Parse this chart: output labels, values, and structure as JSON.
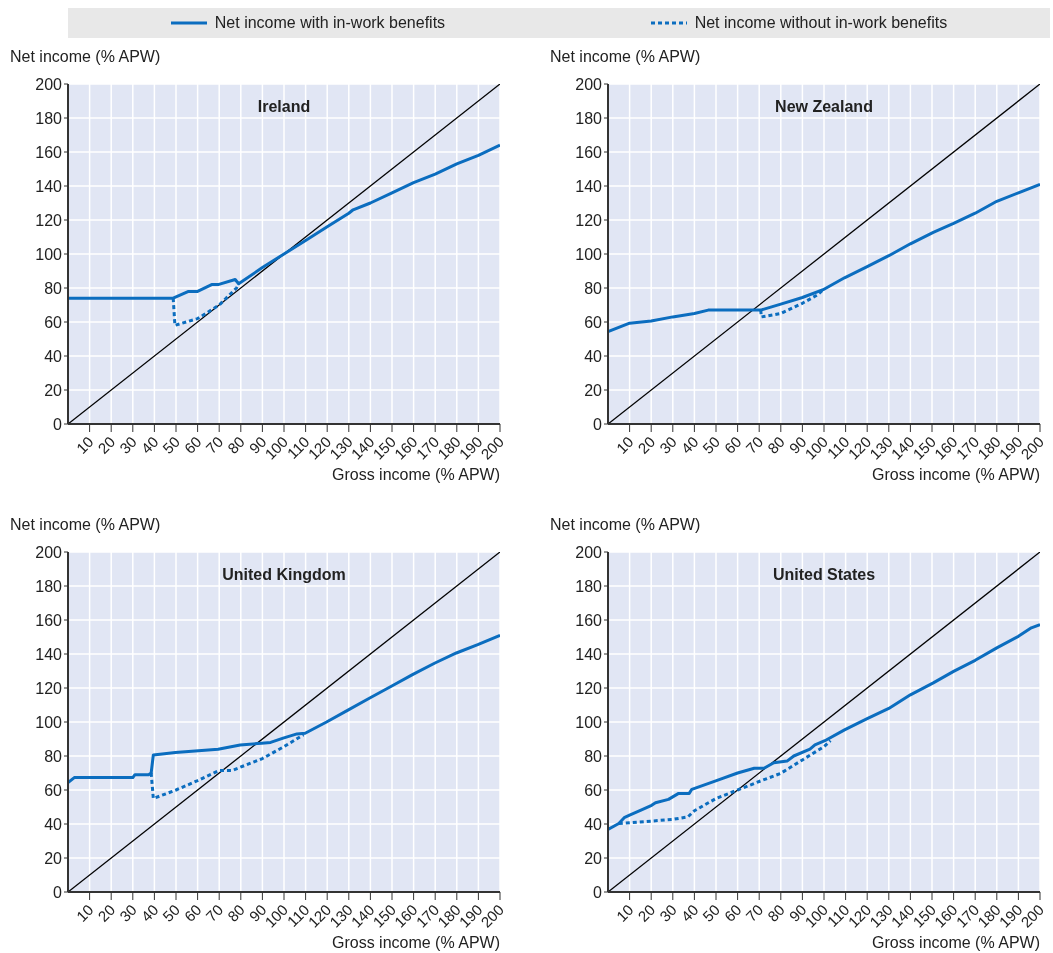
{
  "chart_data": [
    {
      "type": "line",
      "title": "Ireland",
      "xlabel": "Gross income (% APW)",
      "ylabel": "Net income (% APW)",
      "legend": "top",
      "grid": true,
      "xlim": [
        0,
        200
      ],
      "ylim": [
        0,
        200
      ],
      "yticks": [
        0,
        20,
        40,
        60,
        80,
        100,
        120,
        140,
        160,
        180,
        200
      ],
      "xticks": [
        10,
        20,
        30,
        40,
        50,
        60,
        70,
        80,
        90,
        100,
        110,
        120,
        130,
        140,
        150,
        160,
        170,
        180,
        190,
        200
      ],
      "series": [
        {
          "type": "line",
          "color": "#000000",
          "line_style": "solid",
          "x": [
            0,
            200
          ],
          "values": [
            0,
            200
          ]
        },
        {
          "type": "line",
          "name": "Net income with in-work benefits",
          "color": "#0b6dbf",
          "line_style": "solid",
          "x": [
            0,
            48.7,
            55.8,
            60,
            66.5,
            69.5,
            77.4,
            79,
            90,
            100,
            110,
            120,
            130,
            132,
            140,
            150,
            160,
            170,
            180,
            190,
            200
          ],
          "values": [
            74,
            74,
            78,
            78,
            82,
            82,
            85,
            82.5,
            92,
            100,
            108,
            116,
            124,
            126,
            130,
            136,
            142,
            147,
            153,
            158,
            164
          ]
        },
        {
          "type": "line",
          "name": "Net income without in-work benefits",
          "color": "#0b6dbf",
          "line_style": "dashed",
          "x": [
            48.7,
            49.5,
            60,
            70,
            78,
            79
          ],
          "values": [
            74,
            58,
            62,
            70,
            80,
            82.5
          ]
        }
      ]
    },
    {
      "type": "line",
      "title": "New Zealand",
      "xlabel": "Gross income (% APW)",
      "ylabel": "Net income (% APW)",
      "grid": true,
      "xlim": [
        0,
        200
      ],
      "ylim": [
        0,
        200
      ],
      "yticks": [
        0,
        20,
        40,
        60,
        80,
        100,
        120,
        140,
        160,
        180,
        200
      ],
      "xticks": [
        10,
        20,
        30,
        40,
        50,
        60,
        70,
        80,
        90,
        100,
        110,
        120,
        130,
        140,
        150,
        160,
        170,
        180,
        190,
        200
      ],
      "series": [
        {
          "type": "line",
          "color": "#000000",
          "line_style": "solid",
          "x": [
            0,
            200
          ],
          "values": [
            0,
            200
          ]
        },
        {
          "type": "line",
          "color": "#0b6dbf",
          "line_style": "solid",
          "x": [
            0,
            10,
            20,
            30,
            40,
            46.4,
            60,
            70.7,
            80,
            90,
            99.6,
            109.5,
            120,
            130,
            140,
            150.6,
            160,
            170,
            180,
            190,
            200
          ],
          "values": [
            54.4,
            59.3,
            60.6,
            63,
            65,
            67,
            67,
            67,
            70.5,
            74.4,
            79,
            86,
            92.6,
            99,
            106,
            112.7,
            118,
            124,
            131,
            136,
            141
          ]
        },
        {
          "type": "line",
          "color": "#0b6dbf",
          "line_style": "dashed",
          "x": [
            70.7,
            71,
            80,
            90,
            97,
            99.6
          ],
          "values": [
            67,
            63,
            65,
            71,
            76,
            79
          ]
        }
      ]
    },
    {
      "type": "line",
      "title": "United Kingdom",
      "xlabel": "Gross income (% APW)",
      "ylabel": "Net income (% APW)",
      "grid": true,
      "xlim": [
        0,
        200
      ],
      "ylim": [
        0,
        200
      ],
      "yticks": [
        0,
        20,
        40,
        60,
        80,
        100,
        120,
        140,
        160,
        180,
        200
      ],
      "xticks": [
        10,
        20,
        30,
        40,
        50,
        60,
        70,
        80,
        90,
        100,
        110,
        120,
        130,
        140,
        150,
        160,
        170,
        180,
        190,
        200
      ],
      "series": [
        {
          "type": "line",
          "color": "#000000",
          "line_style": "solid",
          "x": [
            0,
            200
          ],
          "values": [
            0,
            200
          ]
        },
        {
          "type": "line",
          "color": "#0b6dbf",
          "line_style": "solid",
          "x": [
            0,
            2.9,
            30,
            31,
            37.3,
            38.5,
            39.5,
            49.7,
            69.5,
            79.7,
            89.6,
            93.8,
            99.6,
            106,
            109.8,
            119.7,
            129.6,
            139.5,
            149.7,
            159.7,
            169.9,
            179.8,
            189.7,
            200
          ],
          "values": [
            64.3,
            67.3,
            67.3,
            69,
            69,
            70,
            80.6,
            82,
            84,
            86.5,
            87.5,
            88,
            90.5,
            93,
            93.4,
            100,
            107,
            114,
            121,
            128,
            134.7,
            140.6,
            145.5,
            151
          ]
        },
        {
          "type": "line",
          "color": "#0b6dbf",
          "line_style": "dashed",
          "x": [
            38.5,
            39.5,
            50,
            60,
            70,
            76,
            90,
            100,
            109
          ],
          "values": [
            70,
            55,
            60,
            65.5,
            71.5,
            71.5,
            78.5,
            85.5,
            92.5
          ]
        }
      ]
    },
    {
      "type": "line",
      "title": "United States",
      "xlabel": "Gross income (% APW)",
      "ylabel": "Net income (% APW)",
      "grid": true,
      "xlim": [
        0,
        200
      ],
      "ylim": [
        0,
        200
      ],
      "yticks": [
        0,
        20,
        40,
        60,
        80,
        100,
        120,
        140,
        160,
        180,
        200
      ],
      "xticks": [
        10,
        20,
        30,
        40,
        50,
        60,
        70,
        80,
        90,
        100,
        110,
        120,
        130,
        140,
        150,
        160,
        170,
        180,
        190,
        200
      ],
      "series": [
        {
          "type": "line",
          "color": "#000000",
          "line_style": "solid",
          "x": [
            0,
            200
          ],
          "values": [
            0,
            200
          ]
        },
        {
          "type": "line",
          "color": "#0b6dbf",
          "line_style": "solid",
          "x": [
            0,
            5,
            7.5,
            10,
            15,
            20.2,
            22,
            28,
            32.7,
            37.6,
            38.8,
            50.2,
            60,
            67.7,
            72.2,
            76.8,
            82.9,
            86,
            93.5,
            95.8,
            100.4,
            109.5,
            120,
            130,
            140,
            150.6,
            160,
            170,
            180,
            190,
            196,
            200
          ],
          "values": [
            36.8,
            40.3,
            43.7,
            45.2,
            48,
            51,
            52.5,
            54.5,
            58,
            58,
            60.4,
            65.5,
            70,
            72.8,
            72.8,
            76,
            77,
            80,
            84,
            86.5,
            89,
            95.4,
            102,
            108,
            116,
            123,
            129.8,
            136.3,
            143.6,
            150.4,
            155.4,
            157.3
          ]
        },
        {
          "type": "line",
          "color": "#0b6dbf",
          "line_style": "dashed",
          "x": [
            5,
            10,
            20,
            30,
            37,
            40,
            50,
            60,
            70,
            80,
            90,
            100,
            103
          ],
          "values": [
            40.3,
            40.7,
            41.7,
            42.7,
            44.2,
            47.8,
            55,
            60,
            65,
            69.8,
            77.7,
            85.5,
            89
          ]
        }
      ]
    }
  ]
}
